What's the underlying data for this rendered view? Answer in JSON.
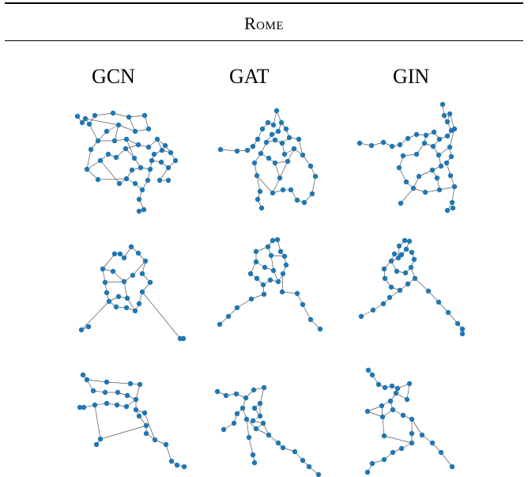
{
  "header": {
    "title": "Rome"
  },
  "columns": [
    {
      "label": "GCN"
    },
    {
      "label": "GAT"
    },
    {
      "label": "GIN"
    }
  ],
  "colors": {
    "node": "#1f77b4",
    "edge": "#555555"
  },
  "rows": 3
}
